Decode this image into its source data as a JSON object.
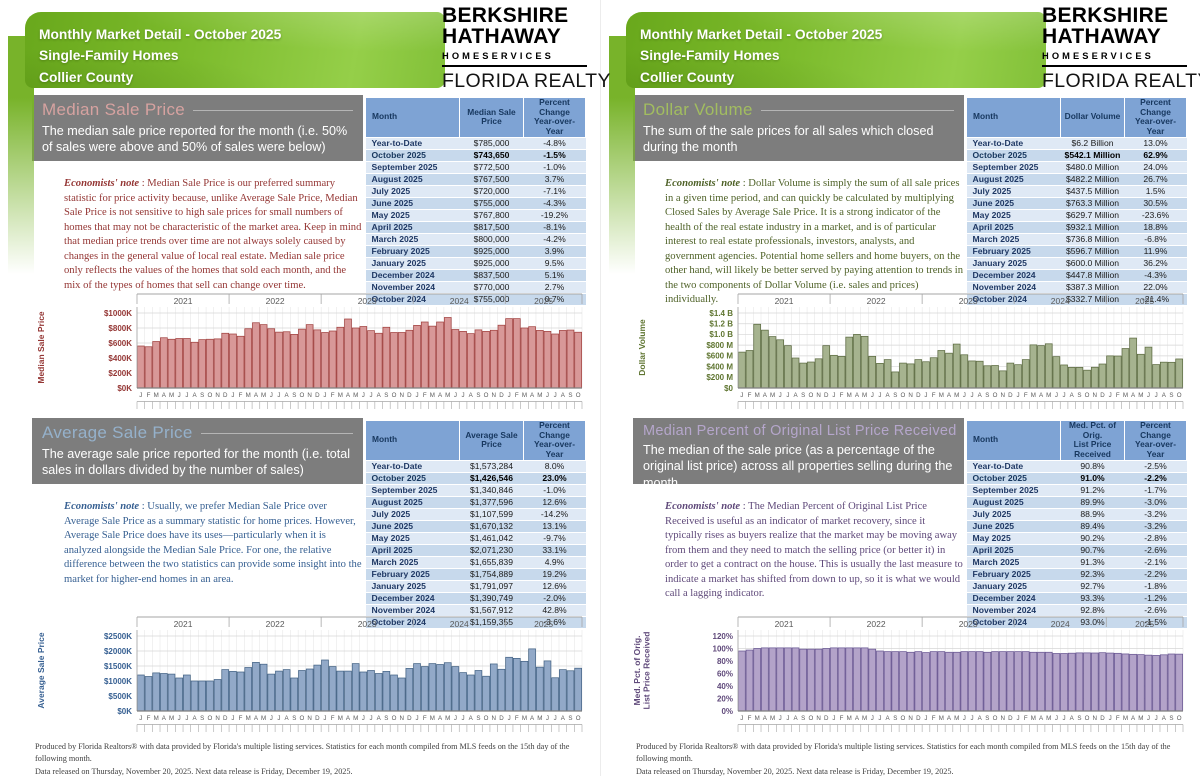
{
  "report": {
    "header": {
      "line1": "Monthly Market Detail - October 2025",
      "line2": "Single-Family Homes",
      "line3": "Collier County"
    },
    "logo": {
      "line1": "BERKSHIRE",
      "line2": "HATHAWAY",
      "line3": "HOMESERVICES",
      "line4": "FLORIDA REALTY"
    },
    "footer": {
      "line1": "Produced by Florida Realtors® with data provided by Florida's multiple listing services. Statistics for each month compiled from MLS feeds on the 15th day of the following month.",
      "line2": "Data released on Thursday, November 20, 2025. Next data release is Friday, December 19, 2025."
    }
  },
  "sections": [
    {
      "id": "median-sale-price",
      "title": "Median Sale Price",
      "subtitle": "The median sale price reported for the month (i.e. 50% of sales were above and 50% of sales were below)",
      "note_label": "Economists' note",
      "note": " :  Median Sale Price is our preferred summary statistic for price activity because, unlike Average Sale Price, Median Sale Price is not sensitive to high sale prices for small numbers of homes that may not be characteristic of the market area.  Keep in mind that median price trends over time are not always solely caused by changes in the general value of local real estate.  Median sale price only reflects the values of the homes that sold each month, and the mix of the types of homes that sell can change over time.",
      "colors": {
        "title": "#d6a2a0",
        "note": "#943634"
      },
      "table": {
        "columns": {
          "month": "Month",
          "value": "Median Sale Price",
          "pct": "Percent Change\nYear-over-Year"
        },
        "bold_row": 1,
        "rows": [
          [
            "Year-to-Date",
            "$785,000",
            "-4.8%"
          ],
          [
            "October 2025",
            "$743,650",
            "-1.5%"
          ],
          [
            "September 2025",
            "$772,500",
            "-1.0%"
          ],
          [
            "August 2025",
            "$767,500",
            "3.7%"
          ],
          [
            "July 2025",
            "$720,000",
            "-7.1%"
          ],
          [
            "June 2025",
            "$755,000",
            "-4.3%"
          ],
          [
            "May 2025",
            "$767,800",
            "-19.2%"
          ],
          [
            "April 2025",
            "$817,500",
            "-8.1%"
          ],
          [
            "March 2025",
            "$800,000",
            "-4.2%"
          ],
          [
            "February 2025",
            "$925,000",
            "3.9%"
          ],
          [
            "January 2025",
            "$925,000",
            "9.5%"
          ],
          [
            "December 2024",
            "$837,500",
            "5.1%"
          ],
          [
            "November 2024",
            "$770,000",
            "2.7%"
          ],
          [
            "October 2024",
            "$755,000",
            "0.7%"
          ]
        ]
      }
    },
    {
      "id": "average-sale-price",
      "title": "Average Sale Price",
      "subtitle": "The average sale price reported for the month (i.e. total sales in dollars divided by the number of sales)",
      "note_label": "Economists' note",
      "note": " :  Usually, we prefer Median Sale Price over Average Sale Price as a summary statistic for home prices.  However, Average Sale Price does have its uses—particularly when it is analyzed alongside the Median Sale Price.  For one, the relative difference between the two statistics can provide some insight into the market for higher-end homes in an area.",
      "colors": {
        "title": "#95b1cb",
        "note": "#376092"
      },
      "table": {
        "columns": {
          "month": "Month",
          "value": "Average Sale Price",
          "pct": "Percent Change\nYear-over-Year"
        },
        "bold_row": 1,
        "rows": [
          [
            "Year-to-Date",
            "$1,573,284",
            "8.0%"
          ],
          [
            "October 2025",
            "$1,426,546",
            "23.0%"
          ],
          [
            "September 2025",
            "$1,340,846",
            "-1.0%"
          ],
          [
            "August 2025",
            "$1,377,596",
            "12.6%"
          ],
          [
            "July 2025",
            "$1,107,599",
            "-14.2%"
          ],
          [
            "June 2025",
            "$1,670,132",
            "13.1%"
          ],
          [
            "May 2025",
            "$1,461,042",
            "-9.7%"
          ],
          [
            "April 2025",
            "$2,071,230",
            "33.1%"
          ],
          [
            "March 2025",
            "$1,655,839",
            "4.9%"
          ],
          [
            "February 2025",
            "$1,754,889",
            "19.2%"
          ],
          [
            "January 2025",
            "$1,791,097",
            "12.6%"
          ],
          [
            "December 2024",
            "$1,390,749",
            "-2.0%"
          ],
          [
            "November 2024",
            "$1,567,912",
            "42.8%"
          ],
          [
            "October 2024",
            "$1,159,355",
            "-3.6%"
          ]
        ]
      }
    },
    {
      "id": "dollar-volume",
      "title": "Dollar Volume",
      "subtitle": "The sum of the sale prices for all sales which closed during the month",
      "note_label": "Economists' note",
      "note": " :  Dollar Volume is simply the sum of all sale prices in a given time period, and can quickly be calculated by multiplying Closed Sales by Average Sale Price.  It is a strong indicator of the health of the real estate industry in a market, and is of particular interest to real estate professionals, investors, analysts, and government agencies.  Potential home sellers and home buyers, on the other hand, will likely be better served by paying attention to trends in the two components of Dollar Volume (i.e. sales and prices) individually.",
      "colors": {
        "title": "#a2bd60",
        "note": "#4f6228"
      },
      "table": {
        "columns": {
          "month": "Month",
          "value": "Dollar Volume",
          "pct": "Percent Change\nYear-over-Year"
        },
        "bold_row": 1,
        "rows": [
          [
            "Year-to-Date",
            "$6.2 Billion",
            "13.0%"
          ],
          [
            "October 2025",
            "$542.1 Million",
            "62.9%"
          ],
          [
            "September 2025",
            "$480.0 Million",
            "24.0%"
          ],
          [
            "August 2025",
            "$482.2 Million",
            "26.7%"
          ],
          [
            "July 2025",
            "$437.5 Million",
            "1.5%"
          ],
          [
            "June 2025",
            "$763.3 Million",
            "30.5%"
          ],
          [
            "May 2025",
            "$629.7 Million",
            "-23.6%"
          ],
          [
            "April 2025",
            "$932.1 Million",
            "18.8%"
          ],
          [
            "March 2025",
            "$736.8 Million",
            "-6.8%"
          ],
          [
            "February 2025",
            "$596.7 Million",
            "11.9%"
          ],
          [
            "January 2025",
            "$600.0 Million",
            "36.2%"
          ],
          [
            "December 2024",
            "$447.8 Million",
            "-4.3%"
          ],
          [
            "November 2024",
            "$387.3 Million",
            "22.0%"
          ],
          [
            "October 2024",
            "$332.7 Million",
            "-21.4%"
          ]
        ]
      }
    },
    {
      "id": "median-pct-original-list-price",
      "title": "Median Percent of Original List Price Received",
      "subtitle": "The median of the sale price (as a percentage of the original list price) across all properties selling during the month",
      "note_label": "Economists' note",
      "note": " :  The Median Percent of Original List Price Received is useful as an indicator of market recovery, since it typically rises as buyers realize that the market may be moving away from them and they need to match the selling price (or better it) in order to get a contract on the house.  This is usually the last measure to indicate a market has shifted from down to up, so it is what we would call a lagging indicator.",
      "colors": {
        "title": "#b5a6cb",
        "note": "#5f497a"
      },
      "table": {
        "columns": {
          "month": "Month",
          "value": "Med. Pct. of Orig.\nList Price Received",
          "pct": "Percent Change\nYear-over-Year"
        },
        "bold_row": 1,
        "rows": [
          [
            "Year-to-Date",
            "90.8%",
            "-2.5%"
          ],
          [
            "October 2025",
            "91.0%",
            "-2.2%"
          ],
          [
            "September 2025",
            "91.2%",
            "-1.7%"
          ],
          [
            "August 2025",
            "89.9%",
            "-3.0%"
          ],
          [
            "July 2025",
            "88.9%",
            "-3.2%"
          ],
          [
            "June 2025",
            "89.4%",
            "-3.2%"
          ],
          [
            "May 2025",
            "90.2%",
            "-2.8%"
          ],
          [
            "April 2025",
            "90.7%",
            "-2.6%"
          ],
          [
            "March 2025",
            "91.3%",
            "-2.1%"
          ],
          [
            "February 2025",
            "92.3%",
            "-2.2%"
          ],
          [
            "January 2025",
            "92.7%",
            "-1.8%"
          ],
          [
            "December 2024",
            "93.3%",
            "-1.2%"
          ],
          [
            "November 2024",
            "92.8%",
            "-2.6%"
          ],
          [
            "October 2024",
            "93.0%",
            "-1.5%"
          ]
        ]
      }
    }
  ],
  "chart_data": [
    {
      "section": "median-sale-price",
      "type": "bar",
      "ylabel": [
        "Median Sale Price"
      ],
      "unit": "$K",
      "x_range": "Jan 2021 - Oct 2025",
      "years": [
        "2021",
        "2022",
        "2023",
        "2024",
        "2025"
      ],
      "month_letter_cycle": "JFMAMJJASOND",
      "ymax": 1000,
      "ytick_values": [
        0,
        200,
        400,
        600,
        800,
        1000
      ],
      "ytick_labels": [
        "$0K",
        "$200K",
        "$400K",
        "$600K",
        "$800K",
        "$1000K"
      ],
      "grid": true,
      "values": [
        560,
        550,
        620,
        670,
        650,
        660,
        660,
        610,
        645,
        650,
        655,
        730,
        720,
        690,
        790,
        870,
        845,
        790,
        745,
        750,
        715,
        785,
        845,
        775,
        740,
        760,
        810,
        920,
        800,
        820,
        765,
        730,
        810,
        740,
        740,
        770,
        835,
        880,
        825,
        880,
        940,
        780,
        755,
        725,
        775,
        755,
        770,
        837.5,
        925,
        925,
        800,
        817.5,
        767.8,
        755,
        720,
        767.5,
        772.5,
        743.65
      ],
      "bar_fill": "#d89898",
      "bar_stroke": "#9e3b39",
      "axis_color": "#943634"
    },
    {
      "section": "average-sale-price",
      "type": "bar",
      "ylabel": [
        "Average Sale Price"
      ],
      "unit": "$K",
      "x_range": "Jan 2021 - Oct 2025",
      "years": [
        "2021",
        "2022",
        "2023",
        "2024",
        "2025"
      ],
      "month_letter_cycle": "JFMAMJJASOND",
      "ymax": 2500,
      "ytick_values": [
        0,
        500,
        1000,
        1500,
        2000,
        2500
      ],
      "ytick_labels": [
        "$0K",
        "$500K",
        "$1000K",
        "$1500K",
        "$2000K",
        "$2500K"
      ],
      "grid": true,
      "values": [
        1200,
        1150,
        1270,
        1250,
        1230,
        1100,
        1200,
        1000,
        1000,
        1000,
        1050,
        1380,
        1320,
        1300,
        1450,
        1620,
        1560,
        1230,
        1330,
        1380,
        1100,
        1350,
        1400,
        1530,
        1700,
        1480,
        1330,
        1330,
        1580,
        1300,
        1350,
        1250,
        1320,
        1200,
        1100,
        1420,
        1580,
        1480,
        1580,
        1550,
        1610,
        1480,
        1280,
        1200,
        1350,
        1159,
        1568,
        1391,
        1791,
        1755,
        1656,
        2071,
        1461,
        1670,
        1108,
        1378,
        1341,
        1427
      ],
      "bar_fill": "#92a9c8",
      "bar_stroke": "#3e5e81",
      "axis_color": "#376092"
    },
    {
      "section": "dollar-volume",
      "type": "bar",
      "ylabel": [
        "Dollar Volume"
      ],
      "unit": "$M",
      "x_range": "Jan 2021 - Oct 2025",
      "years": [
        "2021",
        "2022",
        "2023",
        "2024",
        "2025"
      ],
      "month_letter_cycle": "JFMAMJJASOND",
      "ymax": 1400,
      "ytick_values": [
        0,
        200,
        400,
        600,
        800,
        1000,
        1200,
        1400
      ],
      "ytick_labels": [
        "$0",
        "$200 M",
        "$400 M",
        "$600 M",
        "$800 M",
        "$1.0 B",
        "$1.2 B",
        "$1.4 B"
      ],
      "grid": true,
      "values": [
        670,
        700,
        1190,
        1080,
        960,
        900,
        790,
        560,
        465,
        485,
        545,
        790,
        610,
        590,
        950,
        1000,
        965,
        590,
        460,
        530,
        300,
        465,
        450,
        530,
        490,
        565,
        700,
        650,
        820,
        620,
        505,
        500,
        415,
        420,
        320,
        465,
        435,
        530,
        805,
        790,
        825,
        585,
        430,
        385,
        385,
        332.7,
        387.3,
        447.8,
        600,
        596.7,
        736.8,
        932.1,
        629.7,
        763.3,
        437.5,
        482.2,
        480,
        542.1
      ],
      "bar_fill": "#a6b38f",
      "bar_stroke": "#57663b",
      "axis_color": "#5f7531"
    },
    {
      "section": "median-pct-original-list-price",
      "type": "bar",
      "ylabel": [
        "Med. Pct. of Orig.",
        "List Price Received"
      ],
      "unit": "%",
      "x_range": "Jan 2021 - Oct 2025",
      "years": [
        "2021",
        "2022",
        "2023",
        "2024",
        "2025"
      ],
      "month_letter_cycle": "JFMAMJJASOND",
      "ymax": 120,
      "ytick_values": [
        0,
        20,
        40,
        60,
        80,
        100,
        120
      ],
      "ytick_labels": [
        "0%",
        "20%",
        "40%",
        "60%",
        "80%",
        "100%",
        "120%"
      ],
      "grid": true,
      "values": [
        96,
        97.5,
        100,
        101,
        101,
        101,
        101,
        101,
        99,
        99,
        99,
        100,
        101,
        101,
        101,
        101,
        101,
        99,
        96,
        95,
        95,
        95,
        94,
        95,
        93.5,
        95,
        95,
        94,
        94,
        95,
        95,
        95,
        94,
        95,
        95,
        95,
        95,
        95,
        94,
        94,
        94,
        92,
        92,
        92.5,
        93,
        93,
        92.8,
        93.3,
        92.7,
        92.3,
        91.3,
        90.7,
        90.2,
        89.4,
        88.9,
        89.9,
        91.2,
        91
      ],
      "bar_fill": "#b3a3c9",
      "bar_stroke": "#63508e",
      "axis_color": "#604a7b"
    }
  ]
}
